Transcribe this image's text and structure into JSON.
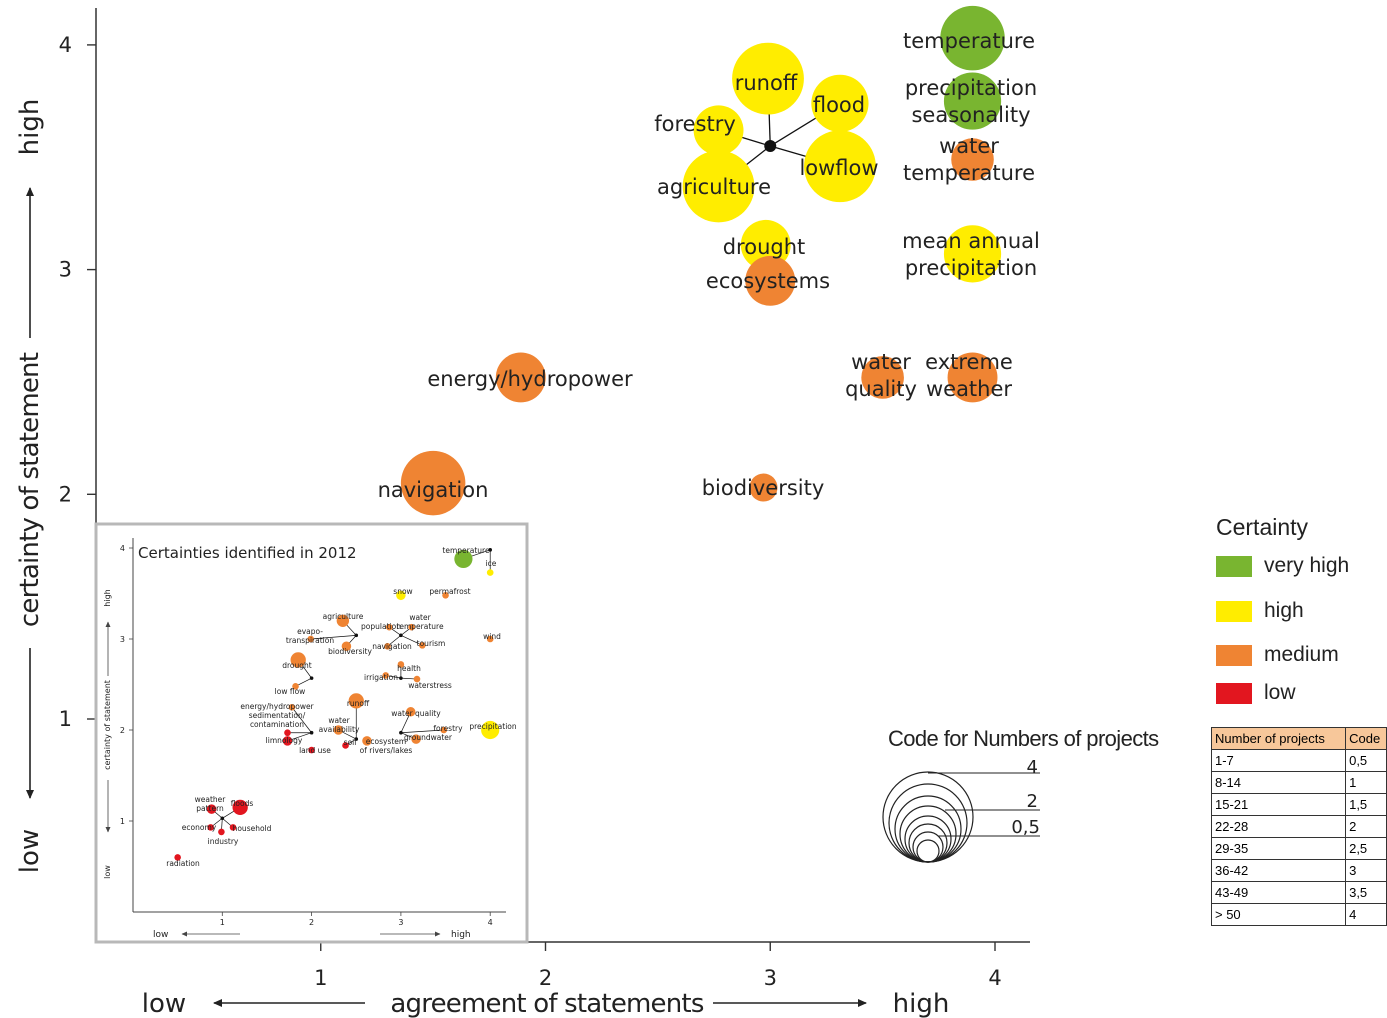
{
  "chart_data": [
    {
      "type": "scatter",
      "xlabel": "agreement of statements",
      "ylabel": "certainty of statement",
      "x_low": "low",
      "x_high": "high",
      "y_low": "low",
      "y_high": "high",
      "xlim": [
        0,
        4.15
      ],
      "ylim": [
        0.2,
        4.2
      ],
      "xticks": [
        "1",
        "2",
        "3",
        "4"
      ],
      "yticks": [
        "1",
        "2",
        "3",
        "4"
      ],
      "points": [
        {
          "label": "temperature",
          "x": 3.9,
          "y": 4.03,
          "size": 3.5,
          "certainty": "very high"
        },
        {
          "label": "precipitation seasonality",
          "x": 3.9,
          "y": 3.75,
          "size": 3,
          "certainty": "very high"
        },
        {
          "label": "water temperature",
          "x": 3.9,
          "y": 3.49,
          "size": 2,
          "certainty": "medium"
        },
        {
          "label": "mean annual precipitation",
          "x": 3.9,
          "y": 3.07,
          "size": 3,
          "certainty": "high"
        },
        {
          "label": "extreme weather",
          "x": 3.9,
          "y": 2.52,
          "size": 2.5,
          "certainty": "medium"
        },
        {
          "label": "water quality",
          "x": 3.5,
          "y": 2.52,
          "size": 2,
          "certainty": "medium"
        },
        {
          "label": "runoff",
          "x": 2.99,
          "y": 3.85,
          "size": 4,
          "certainty": "high"
        },
        {
          "label": "flood",
          "x": 3.31,
          "y": 3.74,
          "size": 3,
          "certainty": "high"
        },
        {
          "label": "forestry",
          "x": 2.77,
          "y": 3.62,
          "size": 2.5,
          "certainty": "high"
        },
        {
          "label": "lowflow",
          "x": 3.31,
          "y": 3.46,
          "size": 4,
          "certainty": "high"
        },
        {
          "label": "agriculture",
          "x": 2.77,
          "y": 3.37,
          "size": 4,
          "certainty": "high"
        },
        {
          "label": "drought",
          "x": 2.98,
          "y": 3.11,
          "size": 2.5,
          "certainty": "high"
        },
        {
          "label": "ecosystems",
          "x": 3.0,
          "y": 2.95,
          "size": 2.5,
          "certainty": "medium"
        },
        {
          "label": "energy/hydropower",
          "x": 1.89,
          "y": 2.52,
          "size": 2.5,
          "certainty": "medium"
        },
        {
          "label": "navigation",
          "x": 1.5,
          "y": 2.05,
          "size": 3.5,
          "certainty": "medium"
        },
        {
          "label": "biodiversity",
          "x": 2.97,
          "y": 2.03,
          "size": 1,
          "certainty": "medium"
        }
      ]
    },
    {
      "type": "scatter",
      "title": "Certainties identified in 2012",
      "xlabel_low": "low",
      "xlabel_high": "high",
      "ylabel": "certainty of statement",
      "y_low": "low",
      "y_high": "high",
      "xlim": [
        0,
        4.2
      ],
      "ylim": [
        0,
        4.1
      ],
      "xticks": [
        "1",
        "2",
        "3",
        "4"
      ],
      "yticks": [
        "1",
        "2",
        "3",
        "4"
      ],
      "points": [
        {
          "label": "temperature",
          "x": 3.7,
          "y": 3.88,
          "size": 3,
          "certainty": "very high"
        },
        {
          "label": "ice",
          "x": 4.0,
          "y": 3.73,
          "size": 1,
          "certainty": "high"
        },
        {
          "label": "snow",
          "x": 3.0,
          "y": 3.48,
          "size": 1.5,
          "certainty": "high"
        },
        {
          "label": "permafrost",
          "x": 3.5,
          "y": 3.48,
          "size": 1,
          "certainty": "medium"
        },
        {
          "label": "agriculture",
          "x": 2.35,
          "y": 3.2,
          "size": 2,
          "certainty": "medium"
        },
        {
          "label": "population",
          "x": 2.87,
          "y": 3.13,
          "size": 1,
          "certainty": "medium"
        },
        {
          "label": "water temperature",
          "x": 3.12,
          "y": 3.13,
          "size": 1,
          "certainty": "medium"
        },
        {
          "label": "evapo-transpiration",
          "x": 1.99,
          "y": 3.0,
          "size": 1,
          "certainty": "medium"
        },
        {
          "label": "biodiversity",
          "x": 2.39,
          "y": 2.92,
          "size": 1.5,
          "certainty": "medium"
        },
        {
          "label": "navigation",
          "x": 2.85,
          "y": 2.92,
          "size": 1,
          "certainty": "medium"
        },
        {
          "label": "tourism",
          "x": 3.24,
          "y": 2.93,
          "size": 1,
          "certainty": "medium"
        },
        {
          "label": "wind",
          "x": 4.0,
          "y": 3.0,
          "size": 1,
          "certainty": "medium"
        },
        {
          "label": "drought",
          "x": 1.85,
          "y": 2.77,
          "size": 2.5,
          "certainty": "medium"
        },
        {
          "label": "health",
          "x": 3.0,
          "y": 2.72,
          "size": 1,
          "certainty": "medium"
        },
        {
          "label": "irrigation",
          "x": 2.83,
          "y": 2.6,
          "size": 1,
          "certainty": "medium"
        },
        {
          "label": "waterstress",
          "x": 3.18,
          "y": 2.56,
          "size": 1,
          "certainty": "medium"
        },
        {
          "label": "low flow",
          "x": 1.82,
          "y": 2.48,
          "size": 1,
          "certainty": "medium"
        },
        {
          "label": "energy/hydropower sedimentation/ contamination",
          "x": 1.78,
          "y": 2.25,
          "size": 1,
          "certainty": "medium"
        },
        {
          "label": "runoff",
          "x": 2.5,
          "y": 2.32,
          "size": 2.5,
          "certainty": "medium"
        },
        {
          "label": "water quality",
          "x": 3.11,
          "y": 2.2,
          "size": 1.5,
          "certainty": "medium"
        },
        {
          "label": "precipitation",
          "x": 4.0,
          "y": 2.0,
          "size": 3,
          "certainty": "high"
        },
        {
          "label": "forestry",
          "x": 3.48,
          "y": 2.0,
          "size": 1,
          "certainty": "medium"
        },
        {
          "label": "groundwater",
          "x": 3.17,
          "y": 1.9,
          "size": 1.5,
          "certainty": "medium"
        },
        {
          "label": "water availability",
          "x": 2.3,
          "y": 2.0,
          "size": 1.5,
          "certainty": "medium"
        },
        {
          "label": "limnology",
          "x": 1.73,
          "y": 1.97,
          "size": 1,
          "certainty": "low"
        },
        {
          "label": "land use",
          "x": 1.73,
          "y": 1.88,
          "size": 1.5,
          "certainty": "low"
        },
        {
          "label": "soil",
          "x": 2.0,
          "y": 1.78,
          "size": 1,
          "certainty": "low"
        },
        {
          "label": "ecosystem of rivers/lakes",
          "x": 2.38,
          "y": 1.83,
          "size": 1,
          "certainty": "low"
        },
        {
          "label": "ecosystem of rivers/lakes",
          "x": 2.62,
          "y": 1.88,
          "size": 1.5,
          "certainty": "medium"
        },
        {
          "label": "weather pattern",
          "x": 0.88,
          "y": 1.13,
          "size": 1.5,
          "certainty": "low"
        },
        {
          "label": "floods",
          "x": 1.2,
          "y": 1.15,
          "size": 2.5,
          "certainty": "low"
        },
        {
          "label": "economy",
          "x": 0.87,
          "y": 0.93,
          "size": 1,
          "certainty": "low"
        },
        {
          "label": "household",
          "x": 1.12,
          "y": 0.93,
          "size": 1,
          "certainty": "low"
        },
        {
          "label": "industry",
          "x": 0.99,
          "y": 0.88,
          "size": 1,
          "certainty": "low"
        },
        {
          "label": "radiation",
          "x": 0.5,
          "y": 0.6,
          "size": 1,
          "certainty": "low"
        }
      ]
    }
  ],
  "legend": {
    "title": "Certainty",
    "items": [
      {
        "label": "very high",
        "color": "#79b530"
      },
      {
        "label": "high",
        "color": "#ffed00"
      },
      {
        "label": "medium",
        "color": "#ef8433"
      },
      {
        "label": "low",
        "color": "#e2161f"
      }
    ]
  },
  "size_code": {
    "title": "Code for Numbers of projects",
    "marks": [
      "4",
      "2",
      "0,5"
    ],
    "table": {
      "headers": [
        "Number of projects",
        "Code"
      ],
      "rows": [
        [
          "1-7",
          "0,5"
        ],
        [
          "8-14",
          "1"
        ],
        [
          "15-21",
          "1,5"
        ],
        [
          "22-28",
          "2"
        ],
        [
          "29-35",
          "2,5"
        ],
        [
          "36-42",
          "3"
        ],
        [
          "43-49",
          "3,5"
        ],
        [
          "> 50",
          "4"
        ]
      ]
    }
  }
}
